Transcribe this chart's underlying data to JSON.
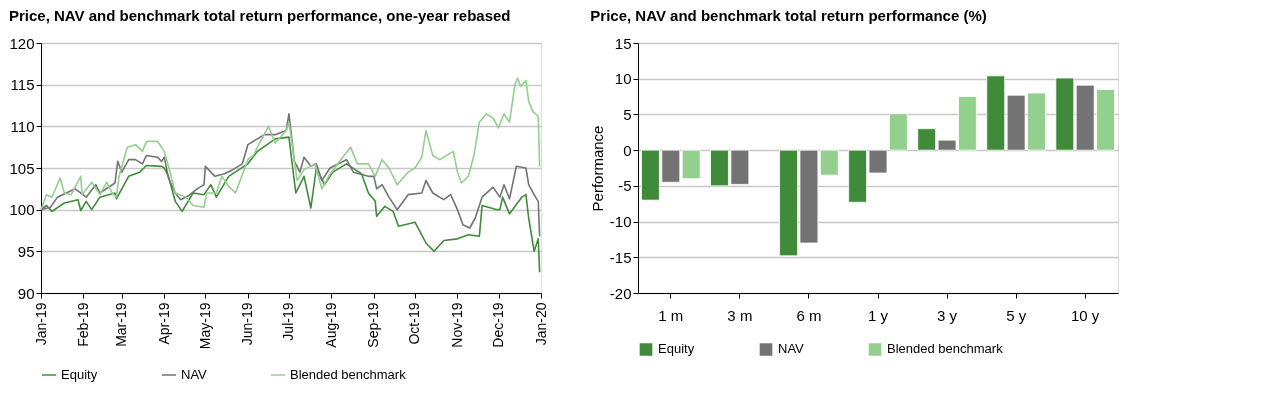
{
  "chart_data": [
    {
      "type": "line",
      "title": "Price, NAV and benchmark total return performance, one-year rebased",
      "xlim": [
        "2019-01-01",
        "2020-01-01"
      ],
      "xticks": [
        {
          "value": "2019-01-01",
          "label": "Jan-19"
        },
        {
          "value": "2019-02-01",
          "label": "Feb-19"
        },
        {
          "value": "2019-03-01",
          "label": "Mar-19"
        },
        {
          "value": "2019-04-01",
          "label": "Apr-19"
        },
        {
          "value": "2019-05-01",
          "label": "May-19"
        },
        {
          "value": "2019-06-01",
          "label": "Jun-19"
        },
        {
          "value": "2019-07-01",
          "label": "Jul-19"
        },
        {
          "value": "2019-08-01",
          "label": "Aug-19"
        },
        {
          "value": "2019-09-01",
          "label": "Sep-19"
        },
        {
          "value": "2019-10-01",
          "label": "Oct-19"
        },
        {
          "value": "2019-11-01",
          "label": "Nov-19"
        },
        {
          "value": "2019-12-01",
          "label": "Dec-19"
        },
        {
          "value": "2020-01-01",
          "label": "Jan-20"
        }
      ],
      "ylim": [
        90,
        120
      ],
      "yticks": [
        90,
        95,
        100,
        105,
        110,
        115,
        120
      ],
      "grid": "y",
      "legend": "bottom",
      "line_style": "solid",
      "marker": "none",
      "series": [
        {
          "name": "Equity",
          "color": "#3f8b3a",
          "x": [
            "2019-01-01",
            "2019-01-05",
            "2019-01-09",
            "2019-01-18",
            "2019-01-28",
            "2019-01-30",
            "2019-02-03",
            "2019-02-07",
            "2019-02-13",
            "2019-02-24",
            "2019-02-25",
            "2019-03-01",
            "2019-03-06",
            "2019-03-14",
            "2019-03-19",
            "2019-03-30",
            "2019-04-01",
            "2019-04-04",
            "2019-04-09",
            "2019-04-14",
            "2019-04-22",
            "2019-04-30",
            "2019-05-05",
            "2019-05-09",
            "2019-05-18",
            "2019-06-01",
            "2019-06-08",
            "2019-06-21",
            "2019-07-01",
            "2019-07-06",
            "2019-07-12",
            "2019-07-17",
            "2019-07-21",
            "2019-07-27",
            "2019-08-02",
            "2019-08-12",
            "2019-08-23",
            "2019-08-28",
            "2019-09-02",
            "2019-09-03",
            "2019-09-09",
            "2019-09-15",
            "2019-09-19",
            "2019-10-01",
            "2019-10-09",
            "2019-10-15",
            "2019-10-22",
            "2019-11-01",
            "2019-11-09",
            "2019-11-17",
            "2019-11-19",
            "2019-11-30",
            "2019-12-02",
            "2019-12-04",
            "2019-12-09",
            "2019-12-18",
            "2019-12-21",
            "2019-12-23",
            "2019-12-27",
            "2019-12-30",
            "2019-12-31"
          ],
          "values": [
            100,
            100.5,
            99.8,
            100.8,
            101.2,
            99.9,
            101,
            100,
            101.5,
            102,
            101.3,
            102.5,
            104,
            104.5,
            105.3,
            105.2,
            105,
            104,
            101,
            99.8,
            102,
            101.8,
            103,
            101.5,
            104,
            105.5,
            107,
            108.5,
            108.7,
            102,
            104,
            100.2,
            105,
            103,
            104.5,
            105.5,
            104.3,
            102,
            101,
            99.2,
            100.4,
            99.8,
            98,
            98.5,
            96,
            95,
            96.3,
            96.5,
            97,
            96.8,
            100.5,
            100,
            100,
            101.5,
            99.5,
            101.5,
            101.8,
            99,
            95,
            96.5,
            92.5
          ]
        },
        {
          "name": "NAV",
          "color": "#737373",
          "x": [
            "2019-01-01",
            "2019-01-08",
            "2019-01-13",
            "2019-01-26",
            "2019-02-03",
            "2019-02-10",
            "2019-02-13",
            "2019-02-24",
            "2019-02-26",
            "2019-03-01",
            "2019-03-06",
            "2019-03-11",
            "2019-03-16",
            "2019-03-19",
            "2019-03-27",
            "2019-03-30",
            "2019-04-01",
            "2019-04-04",
            "2019-04-09",
            "2019-04-13",
            "2019-04-18",
            "2019-04-25",
            "2019-04-30",
            "2019-05-01",
            "2019-05-08",
            "2019-05-15",
            "2019-05-21",
            "2019-05-28",
            "2019-06-01",
            "2019-06-08",
            "2019-06-13",
            "2019-06-21",
            "2019-06-29",
            "2019-07-01",
            "2019-07-05",
            "2019-07-09",
            "2019-07-12",
            "2019-07-17",
            "2019-07-21",
            "2019-07-25",
            "2019-07-31",
            "2019-08-12",
            "2019-08-17",
            "2019-08-28",
            "2019-09-01",
            "2019-09-03",
            "2019-09-07",
            "2019-09-12",
            "2019-09-18",
            "2019-09-26",
            "2019-10-06",
            "2019-10-09",
            "2019-10-14",
            "2019-10-22",
            "2019-10-27",
            "2019-11-01",
            "2019-11-05",
            "2019-11-10",
            "2019-11-14",
            "2019-11-19",
            "2019-11-27",
            "2019-12-02",
            "2019-12-05",
            "2019-12-09",
            "2019-12-14",
            "2019-12-21",
            "2019-12-23",
            "2019-12-28",
            "2019-12-30",
            "2019-12-31"
          ],
          "values": [
            100,
            100.3,
            101.5,
            102.5,
            101.5,
            103,
            102,
            103.2,
            105.8,
            104.5,
            106,
            106,
            105.5,
            106.5,
            106.3,
            105.8,
            106.3,
            103.8,
            102,
            101.2,
            101.6,
            102.5,
            103,
            105.2,
            104,
            104.3,
            104.8,
            105.5,
            107.8,
            108.5,
            109,
            109,
            109.5,
            111.5,
            105.8,
            104.5,
            106.3,
            105.2,
            105.5,
            103.5,
            105,
            106,
            104.5,
            104,
            104,
            102.5,
            103,
            101.5,
            100,
            101.8,
            102,
            103.5,
            102,
            101.2,
            101.8,
            100,
            98.2,
            97.8,
            99,
            101.5,
            102.7,
            101.5,
            103,
            101.3,
            105.2,
            105,
            103,
            101.5,
            101,
            96.8
          ]
        },
        {
          "name": "Blended benchmark",
          "color": "#93d08e",
          "x": [
            "2019-01-01",
            "2019-01-05",
            "2019-01-09",
            "2019-01-15",
            "2019-01-18",
            "2019-01-23",
            "2019-01-30",
            "2019-01-31",
            "2019-02-07",
            "2019-02-13",
            "2019-02-18",
            "2019-02-22",
            "2019-02-25",
            "2019-02-27",
            "2019-03-05",
            "2019-03-11",
            "2019-03-16",
            "2019-03-19",
            "2019-03-27",
            "2019-03-30",
            "2019-04-01",
            "2019-04-06",
            "2019-04-09",
            "2019-04-17",
            "2019-04-22",
            "2019-04-30",
            "2019-05-02",
            "2019-05-09",
            "2019-05-13",
            "2019-05-18",
            "2019-05-23",
            "2019-06-01",
            "2019-06-05",
            "2019-06-08",
            "2019-06-16",
            "2019-06-21",
            "2019-06-29",
            "2019-07-01",
            "2019-07-07",
            "2019-07-12",
            "2019-07-20",
            "2019-07-25",
            "2019-07-30",
            "2019-08-07",
            "2019-08-15",
            "2019-08-20",
            "2019-08-28",
            "2019-09-02",
            "2019-09-07",
            "2019-09-12",
            "2019-09-18",
            "2019-09-26",
            "2019-10-01",
            "2019-10-06",
            "2019-10-09",
            "2019-10-14",
            "2019-10-19",
            "2019-10-24",
            "2019-10-29",
            "2019-11-01",
            "2019-11-04",
            "2019-11-09",
            "2019-11-13",
            "2019-11-17",
            "2019-11-22",
            "2019-11-27",
            "2019-12-01",
            "2019-12-05",
            "2019-12-09",
            "2019-12-13",
            "2019-12-15",
            "2019-12-17",
            "2019-12-21",
            "2019-12-23",
            "2019-12-26",
            "2019-12-30",
            "2019-12-31"
          ],
          "values": [
            100,
            101.8,
            101.5,
            103.8,
            102,
            101.8,
            104,
            101.8,
            103.3,
            101.8,
            103.3,
            102,
            101.5,
            104,
            107.5,
            107.8,
            107,
            108.2,
            108.2,
            107.5,
            107,
            104,
            102,
            101.5,
            100.5,
            100.3,
            102,
            102,
            104,
            102.8,
            102,
            106,
            106.5,
            107.5,
            110,
            108,
            109.5,
            110.5,
            103.5,
            104.8,
            105.5,
            102.5,
            104,
            105.8,
            107.5,
            105.5,
            105.5,
            104,
            106,
            105,
            103,
            104.5,
            105,
            106.3,
            109.5,
            106.5,
            106,
            106.5,
            107,
            104.5,
            103.2,
            104,
            106.5,
            110.5,
            111.5,
            111,
            109.8,
            111.5,
            110.5,
            115,
            115.8,
            114.8,
            115.5,
            113,
            111.8,
            111.2,
            105.2
          ]
        }
      ]
    },
    {
      "type": "bar",
      "title": "Price, NAV and benchmark total return performance (%)",
      "ylabel": "Performance",
      "categories": [
        "1 m",
        "3 m",
        "6 m",
        "1 y",
        "3 y",
        "5 y",
        "10 y"
      ],
      "ylim": [
        -20,
        15
      ],
      "yticks": [
        -20,
        -15,
        -10,
        -5,
        0,
        5,
        10,
        15
      ],
      "grid": "y",
      "legend": "bottom",
      "series": [
        {
          "name": "Equity",
          "color": "#3f8b3a",
          "values": [
            -7,
            -5,
            -14.8,
            -7.3,
            3,
            10.4,
            10.1
          ]
        },
        {
          "name": "NAV",
          "color": "#737373",
          "values": [
            -4.5,
            -4.8,
            -13,
            -3.2,
            1.4,
            7.7,
            9.1
          ]
        },
        {
          "name": "Blended benchmark",
          "color": "#93d08e",
          "values": [
            -4,
            null,
            -3.5,
            5.1,
            7.5,
            8,
            8.5
          ]
        }
      ]
    }
  ]
}
